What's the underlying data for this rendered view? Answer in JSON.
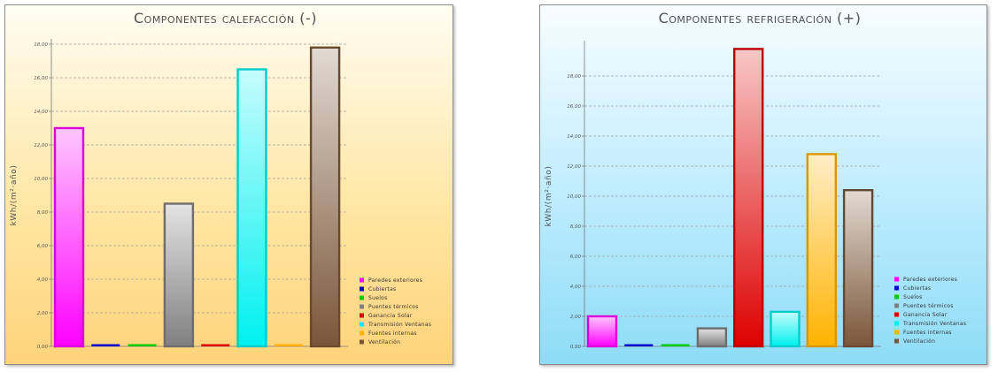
{
  "chart_data": [
    {
      "type": "bar",
      "title": "Componentes calefacción (-)",
      "ylabel": "kWh/(m²·año)",
      "ylim": [
        0,
        18
      ],
      "yticks": [
        "0,00",
        "2,00",
        "4,00",
        "6,00",
        "8,00",
        "10,00",
        "12,00",
        "14,00",
        "16,00",
        "18,00"
      ],
      "grid": true,
      "legend": "bottom-right",
      "categories": [
        "Paredes exteriores",
        "Cubiertas",
        "Suelos",
        "Puentes térmicos",
        "Ganancia Solar",
        "Transmisión Ventanas",
        "Fuentes internas",
        "Ventilación"
      ],
      "values": [
        13.0,
        0.0,
        0.0,
        8.5,
        0.0,
        16.5,
        0.0,
        17.8
      ],
      "colors": [
        "#ff00ff",
        "#0000cc",
        "#00cc00",
        "#808080",
        "#dd0000",
        "#00f0f0",
        "#ffb300",
        "#7a5638"
      ]
    },
    {
      "type": "bar",
      "title": "Componentes refrigeración (+)",
      "ylabel": "kWh/(m²·año)",
      "ylim": [
        0,
        20
      ],
      "yticks": [
        "0,00",
        "2,00",
        "4,00",
        "6,00",
        "8,00",
        "10,00",
        "12,00",
        "14,00",
        "16,00",
        "18,00"
      ],
      "grid": true,
      "legend": "bottom-right",
      "categories": [
        "Paredes exteriores",
        "Cubiertas",
        "Suelos",
        "Puentes térmicos",
        "Ganancia Solar",
        "Transmisión Ventanas",
        "Fuentes internas",
        "Ventilación"
      ],
      "values": [
        2.0,
        0.0,
        0.0,
        1.2,
        19.8,
        2.3,
        12.8,
        10.4
      ],
      "colors": [
        "#ff00ff",
        "#0000cc",
        "#00cc00",
        "#808080",
        "#dd0000",
        "#00f0f0",
        "#ffb300",
        "#7a5638"
      ]
    }
  ]
}
